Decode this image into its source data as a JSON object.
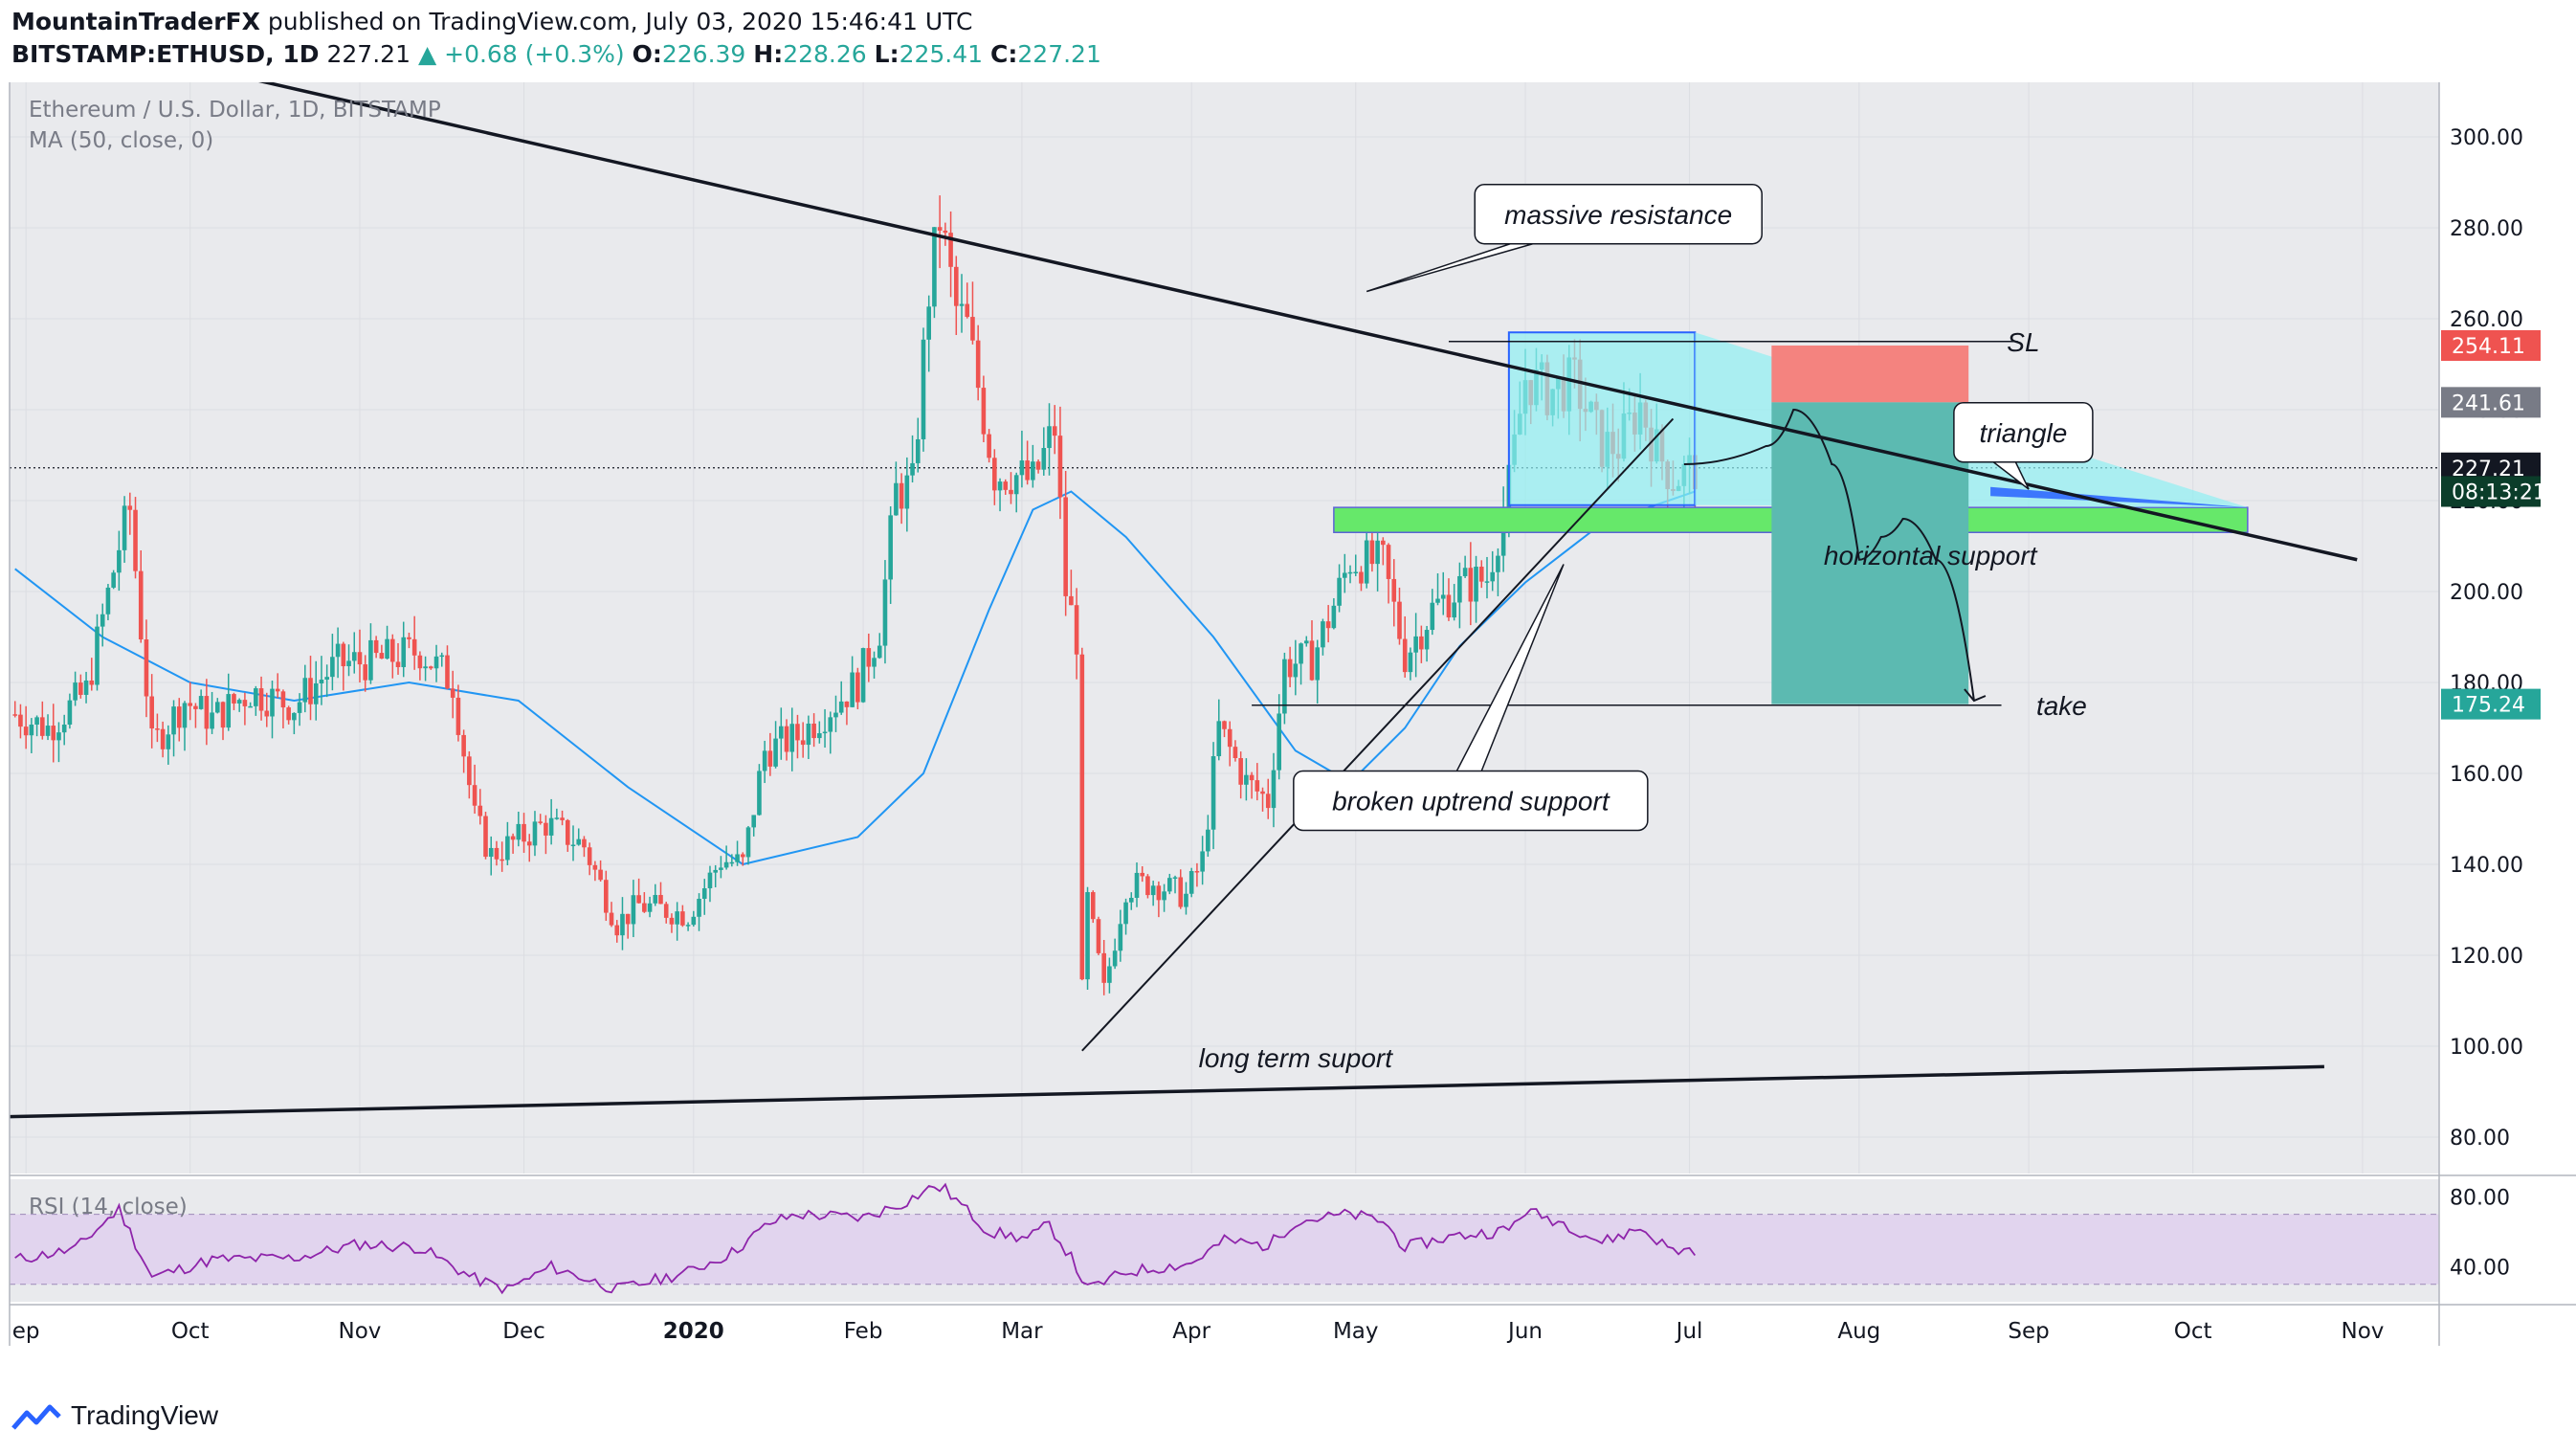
{
  "header": {
    "author": "MountainTraderFX",
    "published_text": "published on TradingView.com, July 03, 2020 15:46:41 UTC",
    "symbol": "BITSTAMP:ETHUSD, 1D",
    "last": "227.21",
    "change": "+0.68 (+0.3%)",
    "o_label": "O:",
    "o": "226.39",
    "h_label": "H:",
    "h": "228.26",
    "l_label": "L:",
    "l": "225.41",
    "c_label": "C:",
    "c": "227.21"
  },
  "footer": {
    "brand": "TradingView"
  },
  "chart_data": {
    "type": "candlestick",
    "title": "Ethereum / U.S. Dollar, 1D, BITSTAMP",
    "indicator": "MA (50, close, 0)",
    "rsi_label": "RSI (14, close)",
    "price_ticks": [
      "300.00",
      "280.00",
      "260.00",
      "240.00",
      "220.00",
      "200.00",
      "180.00",
      "160.00",
      "140.00",
      "120.00",
      "100.00",
      "80.00"
    ],
    "rsi_ticks": [
      "80.00",
      "40.00"
    ],
    "x_ticks": [
      {
        "label": "ep",
        "date": "2019-09-01",
        "bold": false
      },
      {
        "label": "Oct",
        "date": "2019-10-01",
        "bold": false
      },
      {
        "label": "Nov",
        "date": "2019-11-01",
        "bold": false
      },
      {
        "label": "Dec",
        "date": "2019-12-01",
        "bold": false
      },
      {
        "label": "2020",
        "date": "2020-01-01",
        "bold": true
      },
      {
        "label": "Feb",
        "date": "2020-02-01",
        "bold": false
      },
      {
        "label": "Mar",
        "date": "2020-03-01",
        "bold": false
      },
      {
        "label": "Apr",
        "date": "2020-04-01",
        "bold": false
      },
      {
        "label": "May",
        "date": "2020-05-01",
        "bold": false
      },
      {
        "label": "Jun",
        "date": "2020-06-01",
        "bold": false
      },
      {
        "label": "Jul",
        "date": "2020-07-01",
        "bold": false
      },
      {
        "label": "Aug",
        "date": "2020-08-01",
        "bold": false
      },
      {
        "label": "Sep",
        "date": "2020-09-01",
        "bold": false
      },
      {
        "label": "Oct",
        "date": "2020-10-01",
        "bold": false
      },
      {
        "label": "Nov",
        "date": "2020-11-01",
        "bold": false
      }
    ],
    "x_range": [
      "2019-08-29",
      "2020-11-15"
    ],
    "y_range": [
      72,
      312
    ],
    "rsi_range": [
      20,
      90
    ],
    "rsi_band": [
      30,
      70
    ],
    "price_labels": [
      {
        "text": "254.11",
        "value": 254.11,
        "color": "#ef5350"
      },
      {
        "text": "241.61",
        "value": 241.61,
        "color": "#787b86"
      },
      {
        "text": "227.21",
        "value": 227.21,
        "color": "#131722"
      },
      {
        "text": "08:13:21",
        "value": 222.0,
        "color": "#0b3d2a"
      },
      {
        "text": "175.24",
        "value": 175.24,
        "color": "#26a69a"
      }
    ],
    "current_price": 227.21,
    "close_anchors": [
      [
        "2019-08-30",
        173
      ],
      [
        "2019-09-05",
        170
      ],
      [
        "2019-09-12",
        178
      ],
      [
        "2019-09-18",
        210
      ],
      [
        "2019-09-20",
        218
      ],
      [
        "2019-09-24",
        166
      ],
      [
        "2019-09-30",
        176
      ],
      [
        "2019-10-05",
        172
      ],
      [
        "2019-10-12",
        178
      ],
      [
        "2019-10-20",
        175
      ],
      [
        "2019-10-25",
        181
      ],
      [
        "2019-10-28",
        184
      ],
      [
        "2019-11-05",
        185
      ],
      [
        "2019-11-12",
        187
      ],
      [
        "2019-11-18",
        180
      ],
      [
        "2019-11-22",
        150
      ],
      [
        "2019-11-25",
        142
      ],
      [
        "2019-12-05",
        149
      ],
      [
        "2019-12-12",
        144
      ],
      [
        "2019-12-18",
        127
      ],
      [
        "2019-12-22",
        131
      ],
      [
        "2019-12-31",
        129
      ],
      [
        "2020-01-06",
        141
      ],
      [
        "2020-01-10",
        140
      ],
      [
        "2020-01-14",
        165
      ],
      [
        "2020-01-20",
        168
      ],
      [
        "2020-01-31",
        180
      ],
      [
        "2020-02-04",
        192
      ],
      [
        "2020-02-07",
        222
      ],
      [
        "2020-02-10",
        223
      ],
      [
        "2020-02-13",
        266
      ],
      [
        "2020-02-15",
        282
      ],
      [
        "2020-02-18",
        262
      ],
      [
        "2020-02-20",
        258
      ],
      [
        "2020-02-25",
        226
      ],
      [
        "2020-02-28",
        226
      ],
      [
        "2020-03-03",
        224
      ],
      [
        "2020-03-07",
        236
      ],
      [
        "2020-03-09",
        200
      ],
      [
        "2020-03-11",
        190
      ],
      [
        "2020-03-12",
        112
      ],
      [
        "2020-03-13",
        132
      ],
      [
        "2020-03-16",
        112
      ],
      [
        "2020-03-20",
        135
      ],
      [
        "2020-03-25",
        136
      ],
      [
        "2020-03-31",
        133
      ],
      [
        "2020-04-03",
        141
      ],
      [
        "2020-04-06",
        170
      ],
      [
        "2020-04-11",
        158
      ],
      [
        "2020-04-15",
        154
      ],
      [
        "2020-04-18",
        184
      ],
      [
        "2020-04-23",
        185
      ],
      [
        "2020-04-27",
        197
      ],
      [
        "2020-04-30",
        207
      ],
      [
        "2020-05-06",
        206
      ],
      [
        "2020-05-10",
        186
      ],
      [
        "2020-05-15",
        196
      ],
      [
        "2020-05-20",
        201
      ],
      [
        "2020-05-25",
        203
      ],
      [
        "2020-05-29",
        223
      ],
      [
        "2020-06-01",
        247
      ],
      [
        "2020-06-05",
        244
      ],
      [
        "2020-06-10",
        246
      ],
      [
        "2020-06-15",
        232
      ],
      [
        "2020-06-18",
        232
      ],
      [
        "2020-06-22",
        241
      ],
      [
        "2020-06-25",
        231
      ],
      [
        "2020-06-28",
        225
      ],
      [
        "2020-07-02",
        227
      ]
    ],
    "rsi_anchors": [
      [
        "2019-08-30",
        44
      ],
      [
        "2019-09-10",
        50
      ],
      [
        "2019-09-18",
        73
      ],
      [
        "2019-09-24",
        34
      ],
      [
        "2019-10-05",
        44
      ],
      [
        "2019-10-20",
        45
      ],
      [
        "2019-11-01",
        53
      ],
      [
        "2019-11-12",
        51
      ],
      [
        "2019-11-22",
        33
      ],
      [
        "2019-11-28",
        27
      ],
      [
        "2019-12-06",
        40
      ],
      [
        "2019-12-18",
        27
      ],
      [
        "2019-12-31",
        37
      ],
      [
        "2020-01-08",
        48
      ],
      [
        "2020-01-15",
        65
      ],
      [
        "2020-01-20",
        70
      ],
      [
        "2020-02-01",
        68
      ],
      [
        "2020-02-08",
        76
      ],
      [
        "2020-02-14",
        86
      ],
      [
        "2020-02-16",
        84
      ],
      [
        "2020-02-24",
        60
      ],
      [
        "2020-03-02",
        56
      ],
      [
        "2020-03-06",
        64
      ],
      [
        "2020-03-10",
        45
      ],
      [
        "2020-03-13",
        27
      ],
      [
        "2020-03-20",
        37
      ],
      [
        "2020-04-01",
        42
      ],
      [
        "2020-04-07",
        55
      ],
      [
        "2020-04-15",
        52
      ],
      [
        "2020-04-20",
        66
      ],
      [
        "2020-04-30",
        70
      ],
      [
        "2020-05-06",
        66
      ],
      [
        "2020-05-10",
        51
      ],
      [
        "2020-05-18",
        57
      ],
      [
        "2020-05-29",
        61
      ],
      [
        "2020-06-01",
        72
      ],
      [
        "2020-06-08",
        65
      ],
      [
        "2020-06-15",
        54
      ],
      [
        "2020-06-22",
        62
      ],
      [
        "2020-06-28",
        49
      ],
      [
        "2020-07-02",
        50
      ]
    ],
    "ma_anchors": [
      [
        "2019-08-30",
        205
      ],
      [
        "2019-09-15",
        190
      ],
      [
        "2019-10-01",
        180
      ],
      [
        "2019-10-20",
        176
      ],
      [
        "2019-11-10",
        180
      ],
      [
        "2019-11-30",
        176
      ],
      [
        "2019-12-20",
        157
      ],
      [
        "2020-01-10",
        140
      ],
      [
        "2020-01-31",
        146
      ],
      [
        "2020-02-12",
        160
      ],
      [
        "2020-02-24",
        196
      ],
      [
        "2020-03-03",
        218
      ],
      [
        "2020-03-10",
        222
      ],
      [
        "2020-03-20",
        212
      ],
      [
        "2020-04-05",
        190
      ],
      [
        "2020-04-20",
        165
      ],
      [
        "2020-04-30",
        158
      ],
      [
        "2020-05-10",
        170
      ],
      [
        "2020-05-20",
        188
      ],
      [
        "2020-06-01",
        202
      ],
      [
        "2020-06-15",
        215
      ],
      [
        "2020-07-02",
        222
      ]
    ],
    "drawings": {
      "resistance": {
        "from": [
          "2019-09-23",
          318
        ],
        "to": [
          "2020-10-31",
          207
        ]
      },
      "long_term_support": {
        "from": [
          "2019-08-29",
          84.5
        ],
        "to": [
          "2020-10-25",
          95.5
        ]
      },
      "uptrend": {
        "from": [
          "2020-03-12",
          99
        ],
        "to": [
          "2020-06-28",
          238
        ]
      },
      "sl_line": {
        "from": [
          "2020-05-18",
          255
        ],
        "to": [
          "2020-08-30",
          255
        ],
        "value": 255
      },
      "take_line": {
        "from": [
          "2020-04-12",
          175
        ],
        "to": [
          "2020-08-27",
          175
        ],
        "value": 175
      },
      "horizontal_support": {
        "from": [
          "2020-04-27",
          213
        ],
        "to": [
          "2020-10-11",
          218.5
        ]
      },
      "triangle_box": {
        "from": [
          "2020-05-29",
          219
        ],
        "to": [
          "2020-07-02",
          257
        ]
      },
      "position": {
        "from": [
          "2020-07-16",
          175.24
        ],
        "to": [
          "2020-08-21",
          254.11
        ],
        "entry": 241.61,
        "stop": 254.11,
        "target": 175.24
      }
    },
    "annotations": [
      {
        "text": "massive resistance",
        "at": [
          "2020-06-18",
          283
        ]
      },
      {
        "text": "SL",
        "at": [
          "2020-08-31",
          255
        ]
      },
      {
        "text": "triangle",
        "at": [
          "2020-08-31",
          235
        ]
      },
      {
        "text": "horizontal support",
        "at": [
          "2020-08-14",
          208
        ]
      },
      {
        "text": "take",
        "at": [
          "2020-09-07",
          175
        ]
      },
      {
        "text": "broken uptrend support",
        "at": [
          "2020-05-22",
          154
        ]
      },
      {
        "text": "long term suport",
        "at": [
          "2020-04-20",
          97.5
        ]
      }
    ]
  }
}
